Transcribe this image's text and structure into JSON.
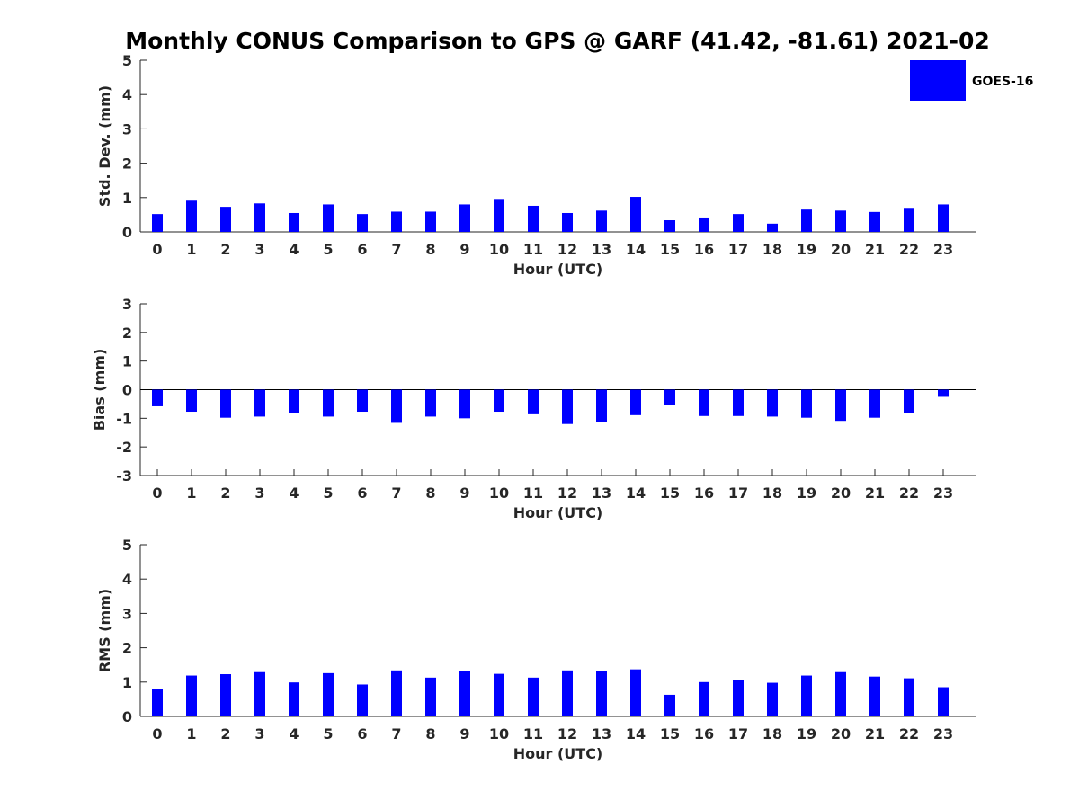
{
  "chart_data": {
    "title": "Monthly CONUS Comparison to GPS @ GARF (41.42, -81.61) 2021-02",
    "legend": {
      "label": "GOES-16",
      "color": "#0000ff",
      "placement": "top-right"
    },
    "bar_color": "#0000ff",
    "panels": [
      {
        "type": "bar",
        "ylabel": "Std. Dev. (mm)",
        "xlabel": "Hour (UTC)",
        "ylim": [
          0,
          5
        ],
        "yticks": [
          0,
          1,
          2,
          3,
          4,
          5
        ],
        "categories": [
          "0",
          "1",
          "2",
          "3",
          "4",
          "5",
          "6",
          "7",
          "8",
          "9",
          "10",
          "11",
          "12",
          "13",
          "14",
          "15",
          "16",
          "17",
          "18",
          "19",
          "20",
          "21",
          "22",
          "23"
        ],
        "series": [
          {
            "name": "GOES-16",
            "values": [
              0.52,
              0.91,
              0.73,
              0.83,
              0.55,
              0.8,
              0.52,
              0.59,
              0.59,
              0.8,
              0.96,
              0.76,
              0.55,
              0.62,
              1.02,
              0.34,
              0.42,
              0.52,
              0.24,
              0.65,
              0.62,
              0.58,
              0.7,
              0.8
            ]
          }
        ]
      },
      {
        "type": "bar",
        "ylabel": "Bias (mm)",
        "xlabel": "Hour (UTC)",
        "ylim": [
          -3,
          3
        ],
        "yticks": [
          -3,
          -2,
          -1,
          0,
          1,
          2,
          3
        ],
        "zero_line": true,
        "categories": [
          "0",
          "1",
          "2",
          "3",
          "4",
          "5",
          "6",
          "7",
          "8",
          "9",
          "10",
          "11",
          "12",
          "13",
          "14",
          "15",
          "16",
          "17",
          "18",
          "19",
          "20",
          "21",
          "22",
          "23"
        ],
        "series": [
          {
            "name": "GOES-16",
            "values": [
              -0.58,
              -0.77,
              -0.98,
              -0.94,
              -0.82,
              -0.94,
              -0.77,
              -1.16,
              -0.94,
              -1.0,
              -0.77,
              -0.86,
              -1.2,
              -1.13,
              -0.89,
              -0.52,
              -0.92,
              -0.92,
              -0.94,
              -0.98,
              -1.09,
              -0.98,
              -0.83,
              -0.25
            ]
          }
        ]
      },
      {
        "type": "bar",
        "ylabel": "RMS (mm)",
        "xlabel": "Hour (UTC)",
        "ylim": [
          0,
          5
        ],
        "yticks": [
          0,
          1,
          2,
          3,
          4,
          5
        ],
        "categories": [
          "0",
          "1",
          "2",
          "3",
          "4",
          "5",
          "6",
          "7",
          "8",
          "9",
          "10",
          "11",
          "12",
          "13",
          "14",
          "15",
          "16",
          "17",
          "18",
          "19",
          "20",
          "21",
          "22",
          "23"
        ],
        "series": [
          {
            "name": "GOES-16",
            "values": [
              0.79,
              1.19,
              1.23,
              1.29,
              0.99,
              1.26,
              0.93,
              1.34,
              1.13,
              1.31,
              1.24,
              1.13,
              1.34,
              1.31,
              1.37,
              0.63,
              1.0,
              1.06,
              0.98,
              1.19,
              1.29,
              1.16,
              1.11,
              0.85
            ]
          }
        ]
      }
    ]
  }
}
